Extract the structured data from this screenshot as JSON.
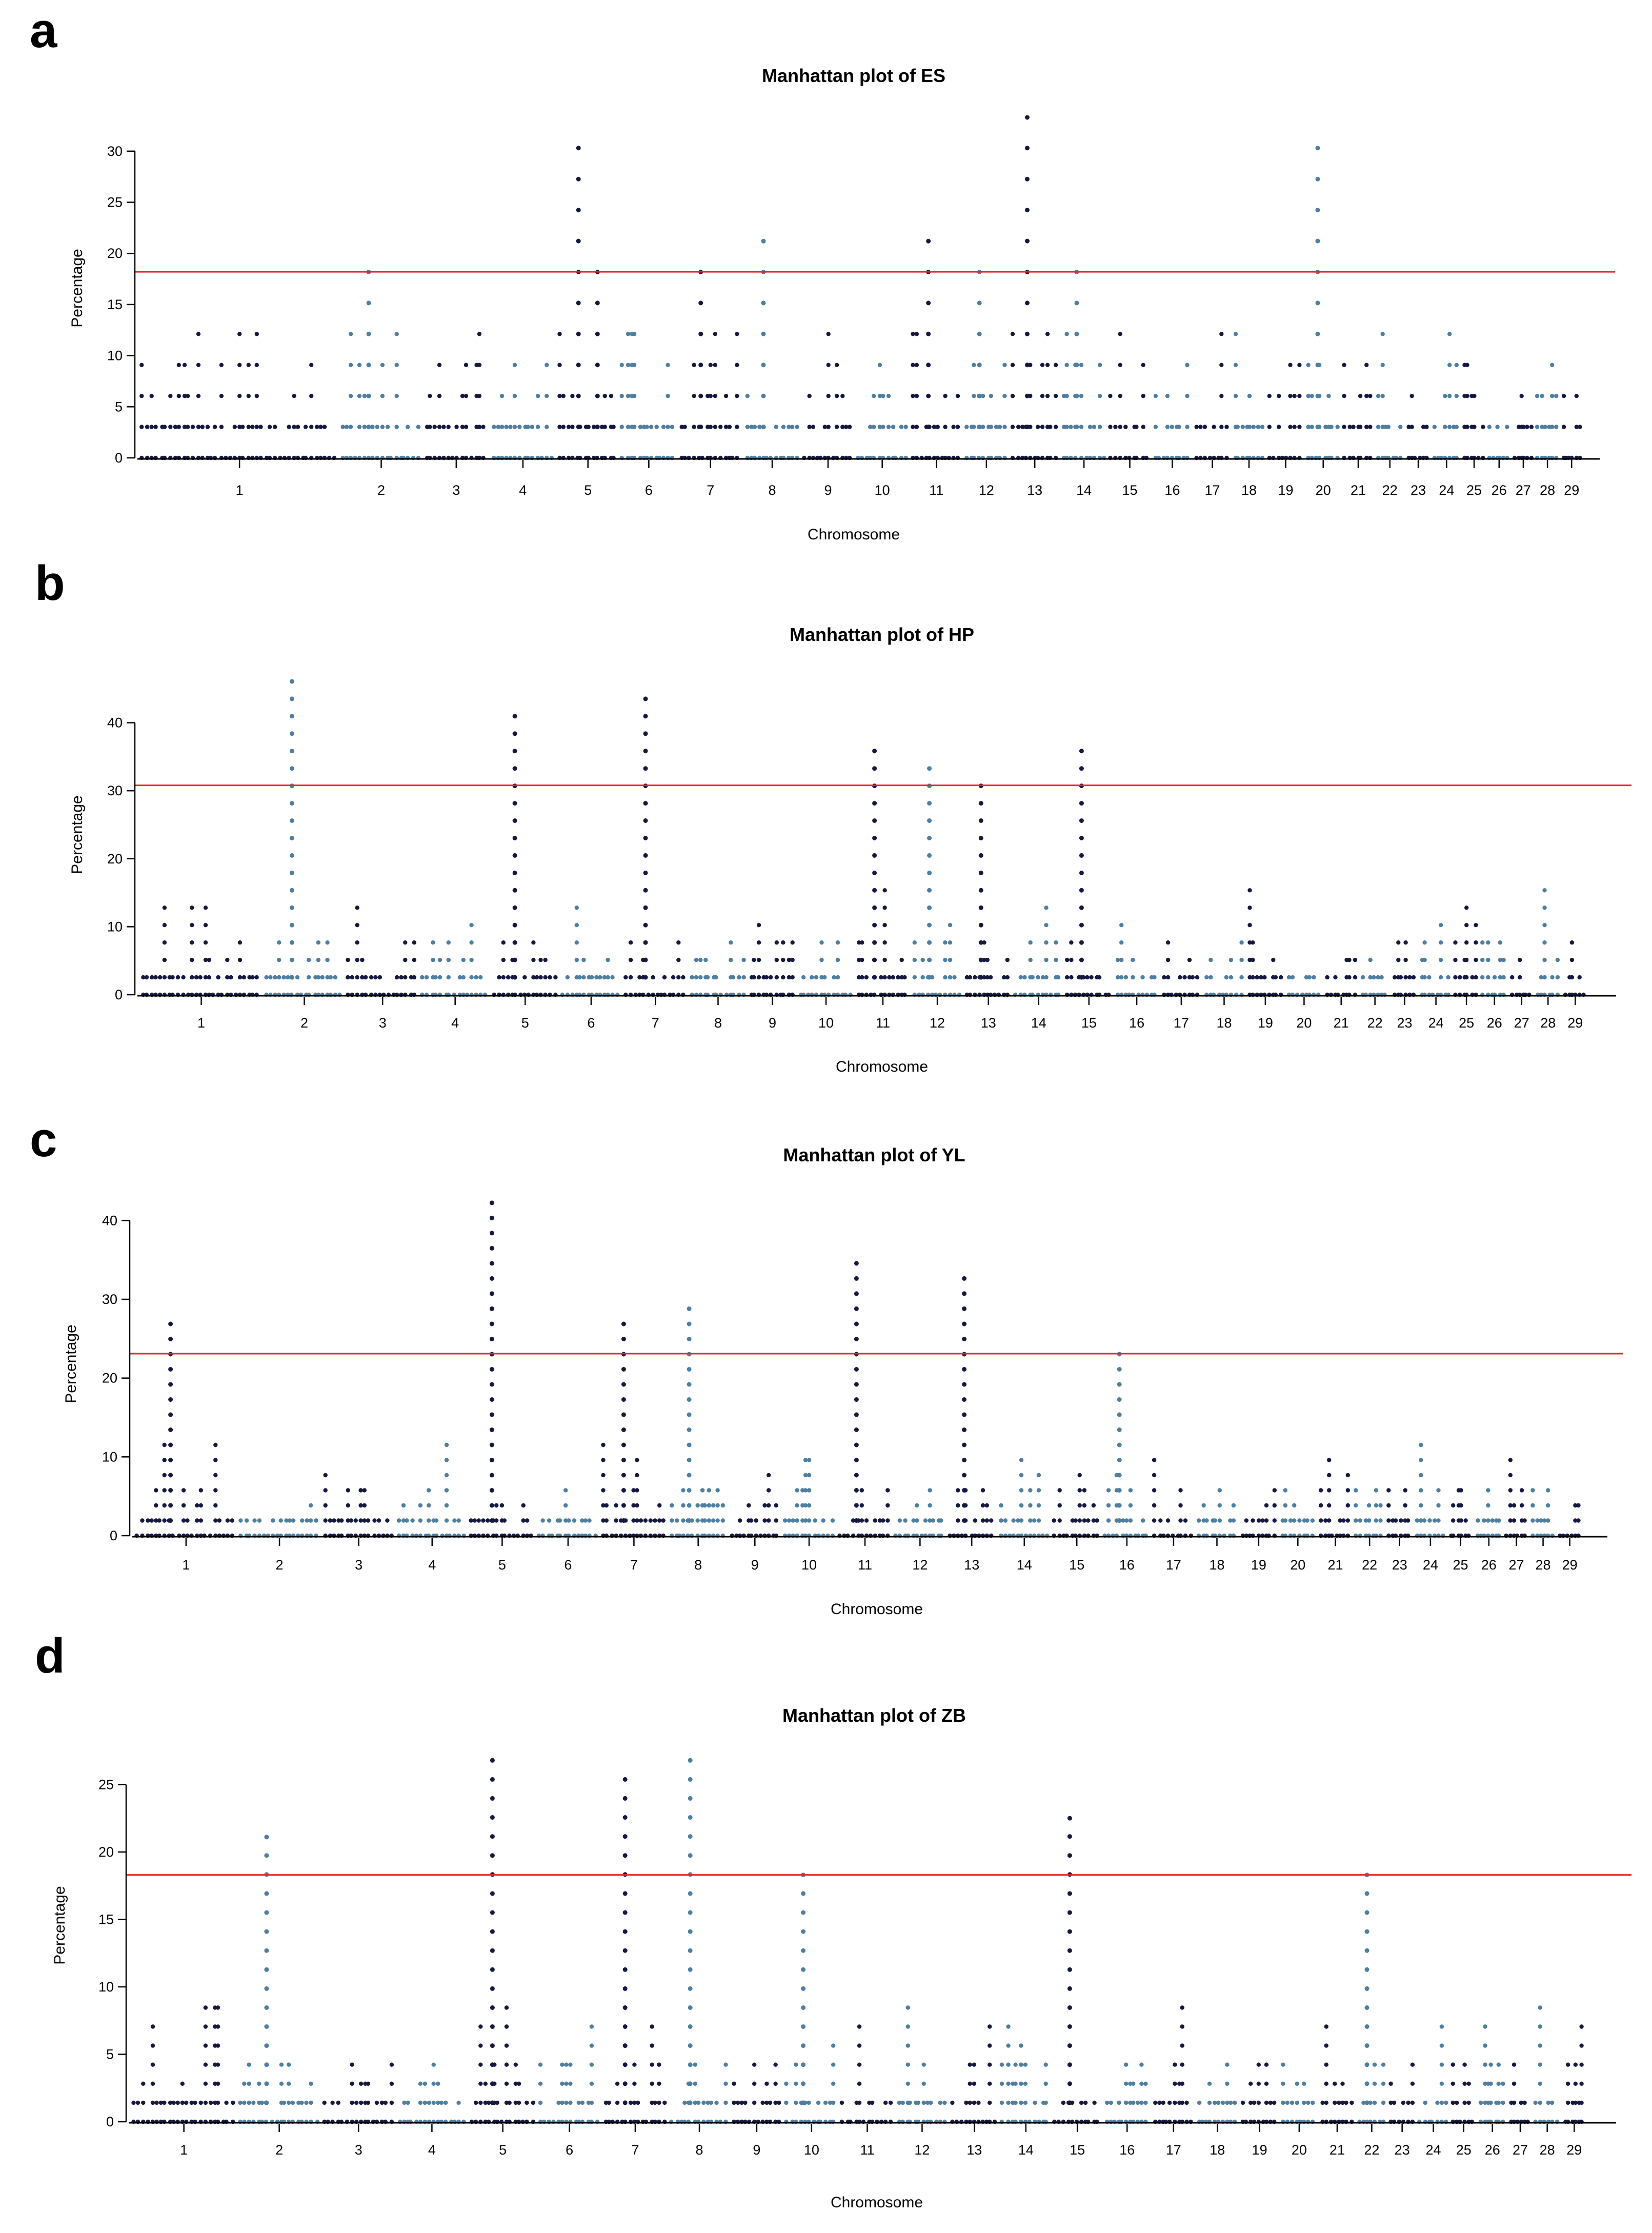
{
  "chart_data": [
    {
      "panel": "a",
      "type": "scatter",
      "title": "Manhattan plot of ES",
      "xlabel": "Chromosome",
      "ylabel": "Percentage",
      "ylim": [
        0,
        33
      ],
      "yticks": [
        0,
        5,
        10,
        15,
        20,
        25,
        30
      ],
      "threshold": 18.2,
      "chromosome_widths": [
        12,
        5,
        4,
        4,
        3.8,
        3.5,
        3.9,
        3.5,
        3.2,
        3.3,
        3.2,
        2.8,
        3,
        2.9,
        2.6,
        2.5,
        2.3,
        2.1,
        2.3,
        2.2,
        2,
        1.8,
        1.6,
        1.8,
        1.5,
        1.5,
        1.4,
        1.5,
        1.4
      ],
      "peaks": [
        {
          "chromosome": 2,
          "value": 18.2
        },
        {
          "chromosome": 5,
          "value": 30.3
        },
        {
          "chromosome": 5,
          "value": 18.2
        },
        {
          "chromosome": 7,
          "value": 18.2
        },
        {
          "chromosome": 8,
          "value": 21.2
        },
        {
          "chromosome": 11,
          "value": 21.2
        },
        {
          "chromosome": 12,
          "value": 18.2
        },
        {
          "chromosome": 13,
          "value": 33.3
        },
        {
          "chromosome": 14,
          "value": 18.2
        },
        {
          "chromosome": 20,
          "value": 30.3
        }
      ]
    },
    {
      "panel": "b",
      "type": "scatter",
      "title": "Manhattan plot of HP",
      "xlabel": "Chromosome",
      "ylabel": "Percentage",
      "ylim": [
        0,
        46
      ],
      "yticks": [
        0,
        10,
        20,
        30,
        40
      ],
      "threshold": 30.8,
      "chromosome_widths": [
        7.5,
        5,
        4.5,
        4.3,
        4.2,
        3.8,
        4,
        3.6,
        3,
        3.5,
        3.4,
        3.2,
        3,
        3.1,
        3,
        2.8,
        2.6,
        2.6,
        2.4,
        2.3,
        2.2,
        1.9,
        1.7,
        2.1,
        1.6,
        1.8,
        1.5,
        1.7,
        1.6
      ],
      "peaks": [
        {
          "chromosome": 2,
          "value": 46.2
        },
        {
          "chromosome": 5,
          "value": 41
        },
        {
          "chromosome": 7,
          "value": 43.6
        },
        {
          "chromosome": 11,
          "value": 35.9
        },
        {
          "chromosome": 12,
          "value": 33.3
        },
        {
          "chromosome": 13,
          "value": 30.8
        },
        {
          "chromosome": 15,
          "value": 35.9
        }
      ]
    },
    {
      "panel": "c",
      "type": "scatter",
      "title": "Manhattan plot of YL",
      "xlabel": "Chromosome",
      "ylabel": "Percentage",
      "ylim": [
        0,
        42.3
      ],
      "yticks": [
        0,
        10,
        20,
        30,
        40
      ],
      "threshold": 23.1,
      "chromosome_widths": [
        6.2,
        5,
        4.5,
        4.3,
        4.1,
        3.8,
        4.1,
        3.6,
        3.2,
        3.3,
        3.4,
        3.2,
        3,
        3.3,
        3,
        3,
        2.6,
        2.6,
        2.4,
        2.3,
        2.2,
        1.9,
        1.7,
        2,
        1.6,
        1.8,
        1.5,
        1.7,
        1.5
      ],
      "peaks": [
        {
          "chromosome": 1,
          "value": 26.9
        },
        {
          "chromosome": 5,
          "value": 42.3
        },
        {
          "chromosome": 7,
          "value": 26.9
        },
        {
          "chromosome": 8,
          "value": 28.8
        },
        {
          "chromosome": 11,
          "value": 34.6
        },
        {
          "chromosome": 13,
          "value": 32.7
        },
        {
          "chromosome": 16,
          "value": 23.1
        }
      ]
    },
    {
      "panel": "d",
      "type": "scatter",
      "title": "Manhattan plot of ZB",
      "xlabel": "Chromosome",
      "ylabel": "Percentage",
      "ylim": [
        0,
        26.8
      ],
      "yticks": [
        0,
        5,
        10,
        15,
        20,
        25
      ],
      "threshold": 18.3,
      "chromosome_widths": [
        6.3,
        5,
        4.4,
        4.3,
        4.1,
        3.8,
        4,
        3.6,
        3.2,
        3.3,
        3.3,
        3.2,
        3,
        3.1,
        3,
        2.9,
        2.6,
        2.6,
        2.4,
        2.3,
        2.2,
        1.9,
        1.7,
        2,
        1.6,
        1.8,
        1.5,
        1.7,
        1.5
      ],
      "peaks": [
        {
          "chromosome": 2,
          "value": 21.1
        },
        {
          "chromosome": 5,
          "value": 26.8
        },
        {
          "chromosome": 7,
          "value": 25.4
        },
        {
          "chromosome": 8,
          "value": 26.8
        },
        {
          "chromosome": 10,
          "value": 18.3
        },
        {
          "chromosome": 15,
          "value": 22.5
        },
        {
          "chromosome": 22,
          "value": 18.3
        }
      ]
    }
  ],
  "chromosome_labels": [
    "1",
    "2",
    "3",
    "4",
    "5",
    "6",
    "7",
    "8",
    "9",
    "10",
    "11",
    "12",
    "13",
    "14",
    "15",
    "16",
    "17",
    "18",
    "19",
    "20",
    "21",
    "22",
    "23",
    "24",
    "25",
    "26",
    "27",
    "28",
    "29"
  ],
  "colors": {
    "dark": "#15183f",
    "light": "#4f7fa0",
    "threshold": "#e8262b",
    "axis": "#000000"
  }
}
